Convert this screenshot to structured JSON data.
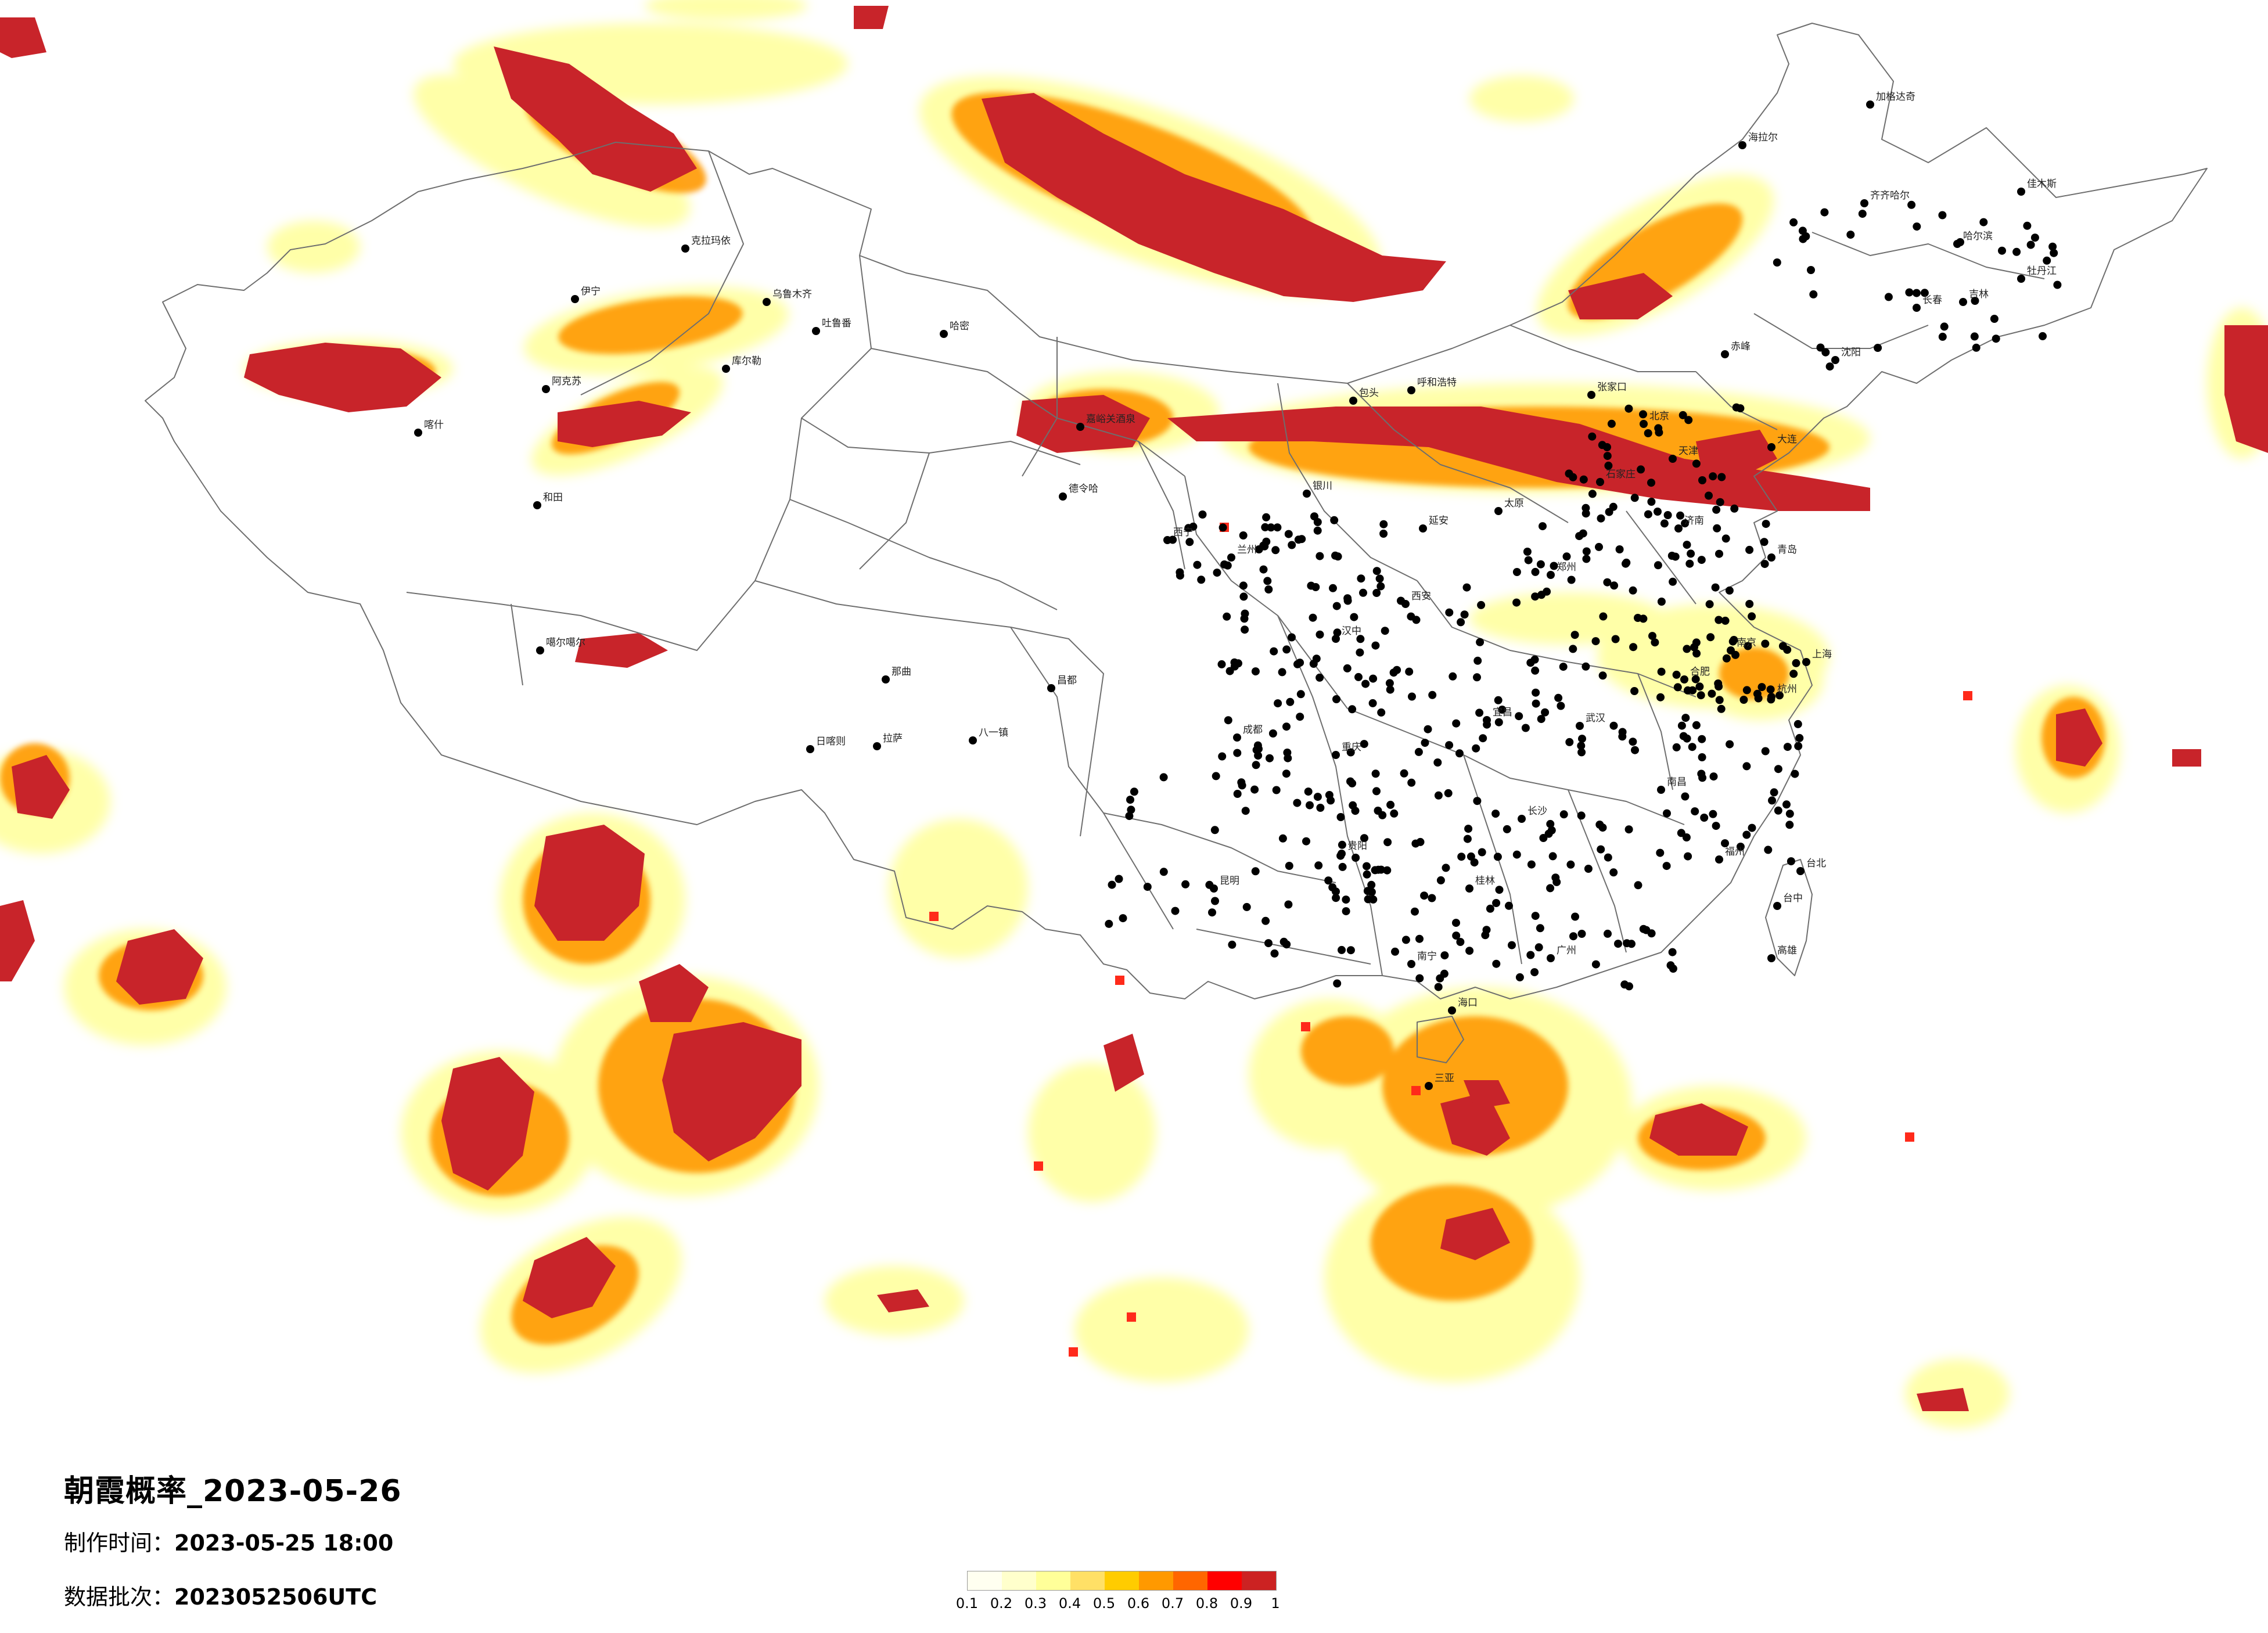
{
  "title": "朝霞概率_2023-05-26",
  "made_time_label": "制作时间：",
  "made_time_value": "2023-05-25 18:00",
  "batch_label": "数据批次：",
  "batch_value": "2023052506UTC",
  "legend": {
    "colors": [
      "#fffff0",
      "#ffffcc",
      "#ffff99",
      "#ffe066",
      "#ffcc00",
      "#ff9900",
      "#ff6600",
      "#ff0000",
      "#cc2222"
    ],
    "ticks": [
      "0.1",
      "0.2",
      "0.3",
      "0.4",
      "0.5",
      "0.6",
      "0.7",
      "0.8",
      "0.9",
      "1"
    ]
  },
  "cities": [
    {
      "name": "克拉玛依"
    },
    {
      "name": "乌鲁木齐"
    },
    {
      "name": "吐鲁番"
    },
    {
      "name": "哈密"
    },
    {
      "name": "伊宁"
    },
    {
      "name": "阿克苏"
    },
    {
      "name": "库尔勒"
    },
    {
      "name": "和田"
    },
    {
      "name": "喀什"
    },
    {
      "name": "嘉峪关酒泉"
    },
    {
      "name": "德令哈"
    },
    {
      "name": "噶尔噶尔"
    },
    {
      "name": "那曲"
    },
    {
      "name": "日喀则"
    },
    {
      "name": "拉萨"
    },
    {
      "name": "八一镇"
    },
    {
      "name": "昌都"
    },
    {
      "name": "呼和浩特"
    },
    {
      "name": "包头"
    },
    {
      "name": "北京"
    },
    {
      "name": "天津"
    },
    {
      "name": "石家庄"
    },
    {
      "name": "太原"
    },
    {
      "name": "济南"
    },
    {
      "name": "郑州"
    },
    {
      "name": "西安"
    },
    {
      "name": "兰州"
    },
    {
      "name": "西宁"
    },
    {
      "name": "银川"
    },
    {
      "name": "成都"
    },
    {
      "name": "重庆"
    },
    {
      "name": "贵阳"
    },
    {
      "name": "昆明"
    },
    {
      "name": "南宁"
    },
    {
      "name": "广州"
    },
    {
      "name": "长沙"
    },
    {
      "name": "武汉"
    },
    {
      "name": "南昌"
    },
    {
      "name": "合肥"
    },
    {
      "name": "南京"
    },
    {
      "name": "上海"
    },
    {
      "name": "杭州"
    },
    {
      "name": "福州"
    },
    {
      "name": "台北"
    },
    {
      "name": "台中"
    },
    {
      "name": "高雄"
    },
    {
      "name": "海拉尔"
    },
    {
      "name": "齐齐哈尔"
    },
    {
      "name": "哈尔滨"
    },
    {
      "name": "长春"
    },
    {
      "name": "沈阳"
    },
    {
      "name": "大连"
    },
    {
      "name": "青岛"
    },
    {
      "name": "张家口"
    },
    {
      "name": "赤峰"
    },
    {
      "name": "桂林"
    },
    {
      "name": "三亚"
    },
    {
      "name": "海口"
    },
    {
      "name": "加格达奇"
    },
    {
      "name": "佳木斯"
    },
    {
      "name": "牡丹江"
    },
    {
      "name": "吉林"
    },
    {
      "name": "延安"
    },
    {
      "name": "汉中"
    },
    {
      "name": "宜昌"
    }
  ]
}
